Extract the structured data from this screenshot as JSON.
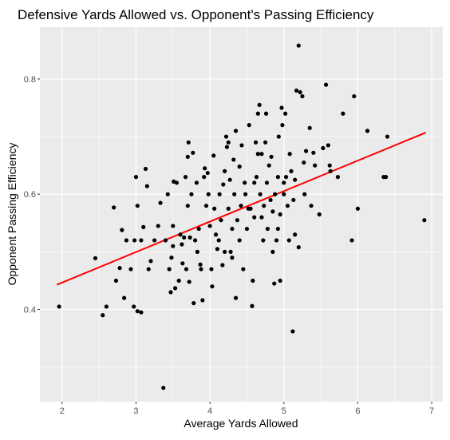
{
  "chart_data": {
    "type": "scatter",
    "title": "Defensive Yards Allowed vs. Opponent's Passing Efficiency",
    "xlabel": "Average Yards Allowed",
    "ylabel": "Opponent Passing Efficiency",
    "xlim": [
      1.7,
      7.15
    ],
    "ylim": [
      0.24,
      0.89
    ],
    "x_ticks": [
      2,
      3,
      4,
      5,
      6,
      7
    ],
    "x_tick_labels": [
      "2",
      "3",
      "4",
      "5",
      "6",
      "7"
    ],
    "y_ticks": [
      0.4,
      0.6,
      0.8
    ],
    "y_tick_labels": [
      "0.4",
      "0.6",
      "0.8"
    ],
    "grid": true,
    "colors": {
      "panel": "#ebebeb",
      "grid": "#ffffff",
      "points": "#000000",
      "trend": "#ff0000"
    },
    "series": [
      {
        "type": "points",
        "points": [
          [
            1.96,
            0.405
          ],
          [
            2.45,
            0.489
          ],
          [
            2.55,
            0.39
          ],
          [
            2.6,
            0.405
          ],
          [
            2.7,
            0.577
          ],
          [
            2.73,
            0.45
          ],
          [
            2.78,
            0.472
          ],
          [
            2.81,
            0.538
          ],
          [
            2.84,
            0.42
          ],
          [
            2.87,
            0.52
          ],
          [
            2.93,
            0.47
          ],
          [
            2.97,
            0.405
          ],
          [
            2.98,
            0.52
          ],
          [
            3.0,
            0.63
          ],
          [
            3.02,
            0.58
          ],
          [
            3.02,
            0.397
          ],
          [
            3.07,
            0.395
          ],
          [
            3.07,
            0.52
          ],
          [
            3.1,
            0.543
          ],
          [
            3.13,
            0.644
          ],
          [
            3.15,
            0.614
          ],
          [
            3.17,
            0.47
          ],
          [
            3.2,
            0.484
          ],
          [
            3.25,
            0.52
          ],
          [
            3.3,
            0.545
          ],
          [
            3.33,
            0.585
          ],
          [
            3.37,
            0.264
          ],
          [
            3.4,
            0.52
          ],
          [
            3.43,
            0.6
          ],
          [
            3.45,
            0.47
          ],
          [
            3.47,
            0.43
          ],
          [
            3.48,
            0.49
          ],
          [
            3.5,
            0.51
          ],
          [
            3.5,
            0.545
          ],
          [
            3.51,
            0.622
          ],
          [
            3.53,
            0.437
          ],
          [
            3.55,
            0.62
          ],
          [
            3.58,
            0.45
          ],
          [
            3.6,
            0.53
          ],
          [
            3.62,
            0.513
          ],
          [
            3.63,
            0.48
          ],
          [
            3.65,
            0.525
          ],
          [
            3.67,
            0.63
          ],
          [
            3.68,
            0.47
          ],
          [
            3.7,
            0.665
          ],
          [
            3.7,
            0.58
          ],
          [
            3.71,
            0.69
          ],
          [
            3.72,
            0.448
          ],
          [
            3.73,
            0.525
          ],
          [
            3.75,
            0.6
          ],
          [
            3.77,
            0.672
          ],
          [
            3.78,
            0.411
          ],
          [
            3.8,
            0.52
          ],
          [
            3.82,
            0.62
          ],
          [
            3.83,
            0.5
          ],
          [
            3.85,
            0.54
          ],
          [
            3.87,
            0.478
          ],
          [
            3.88,
            0.47
          ],
          [
            3.9,
            0.416
          ],
          [
            3.92,
            0.63
          ],
          [
            3.93,
            0.645
          ],
          [
            3.95,
            0.58
          ],
          [
            3.97,
            0.637
          ],
          [
            3.98,
            0.6
          ],
          [
            4.0,
            0.545
          ],
          [
            4.02,
            0.47
          ],
          [
            4.03,
            0.44
          ],
          [
            4.05,
            0.667
          ],
          [
            4.06,
            0.575
          ],
          [
            4.08,
            0.53
          ],
          [
            4.1,
            0.505
          ],
          [
            4.12,
            0.52
          ],
          [
            4.13,
            0.6
          ],
          [
            4.15,
            0.555
          ],
          [
            4.17,
            0.477
          ],
          [
            4.18,
            0.617
          ],
          [
            4.2,
            0.64
          ],
          [
            4.2,
            0.5
          ],
          [
            4.22,
            0.7
          ],
          [
            4.23,
            0.682
          ],
          [
            4.25,
            0.69
          ],
          [
            4.25,
            0.575
          ],
          [
            4.27,
            0.625
          ],
          [
            4.28,
            0.5
          ],
          [
            4.3,
            0.54
          ],
          [
            4.3,
            0.49
          ],
          [
            4.32,
            0.66
          ],
          [
            4.33,
            0.6
          ],
          [
            4.35,
            0.42
          ],
          [
            4.35,
            0.71
          ],
          [
            4.37,
            0.555
          ],
          [
            4.4,
            0.52
          ],
          [
            4.4,
            0.648
          ],
          [
            4.42,
            0.58
          ],
          [
            4.43,
            0.685
          ],
          [
            4.45,
            0.47
          ],
          [
            4.47,
            0.62
          ],
          [
            4.48,
            0.6
          ],
          [
            4.5,
            0.54
          ],
          [
            4.52,
            0.575
          ],
          [
            4.53,
            0.72
          ],
          [
            4.55,
            0.575
          ],
          [
            4.57,
            0.406
          ],
          [
            4.58,
            0.45
          ],
          [
            4.6,
            0.56
          ],
          [
            4.6,
            0.62
          ],
          [
            4.62,
            0.69
          ],
          [
            4.63,
            0.63
          ],
          [
            4.65,
            0.74
          ],
          [
            4.65,
            0.67
          ],
          [
            4.67,
            0.755
          ],
          [
            4.68,
            0.6
          ],
          [
            4.7,
            0.56
          ],
          [
            4.7,
            0.67
          ],
          [
            4.72,
            0.52
          ],
          [
            4.73,
            0.58
          ],
          [
            4.75,
            0.69
          ],
          [
            4.76,
            0.74
          ],
          [
            4.77,
            0.62
          ],
          [
            4.78,
            0.54
          ],
          [
            4.8,
            0.65
          ],
          [
            4.82,
            0.59
          ],
          [
            4.83,
            0.665
          ],
          [
            4.85,
            0.57
          ],
          [
            4.85,
            0.5
          ],
          [
            4.87,
            0.445
          ],
          [
            4.88,
            0.6
          ],
          [
            4.9,
            0.52
          ],
          [
            4.92,
            0.54
          ],
          [
            4.92,
            0.63
          ],
          [
            4.93,
            0.7
          ],
          [
            4.95,
            0.565
          ],
          [
            4.95,
            0.45
          ],
          [
            4.97,
            0.75
          ],
          [
            4.98,
            0.72
          ],
          [
            5.0,
            0.6
          ],
          [
            5.0,
            0.62
          ],
          [
            5.02,
            0.74
          ],
          [
            5.03,
            0.63
          ],
          [
            5.05,
            0.58
          ],
          [
            5.07,
            0.52
          ],
          [
            5.08,
            0.67
          ],
          [
            5.1,
            0.64
          ],
          [
            5.12,
            0.362
          ],
          [
            5.13,
            0.59
          ],
          [
            5.15,
            0.53
          ],
          [
            5.15,
            0.625
          ],
          [
            5.17,
            0.78
          ],
          [
            5.2,
            0.858
          ],
          [
            5.2,
            0.508
          ],
          [
            5.22,
            0.777
          ],
          [
            5.25,
            0.77
          ],
          [
            5.27,
            0.655
          ],
          [
            5.28,
            0.6
          ],
          [
            5.3,
            0.675
          ],
          [
            5.35,
            0.715
          ],
          [
            5.37,
            0.58
          ],
          [
            5.4,
            0.672
          ],
          [
            5.42,
            0.65
          ],
          [
            5.48,
            0.565
          ],
          [
            5.53,
            0.68
          ],
          [
            5.57,
            0.79
          ],
          [
            5.6,
            0.685
          ],
          [
            5.62,
            0.65
          ],
          [
            5.63,
            0.64
          ],
          [
            5.73,
            0.63
          ],
          [
            5.8,
            0.74
          ],
          [
            5.92,
            0.52
          ],
          [
            5.95,
            0.77
          ],
          [
            6.0,
            0.575
          ],
          [
            6.13,
            0.71
          ],
          [
            6.35,
            0.63
          ],
          [
            6.38,
            0.63
          ],
          [
            6.4,
            0.7
          ],
          [
            6.9,
            0.555
          ]
        ]
      },
      {
        "type": "trendline",
        "x": [
          1.93,
          6.92
        ],
        "y": [
          0.443,
          0.707
        ]
      }
    ]
  }
}
